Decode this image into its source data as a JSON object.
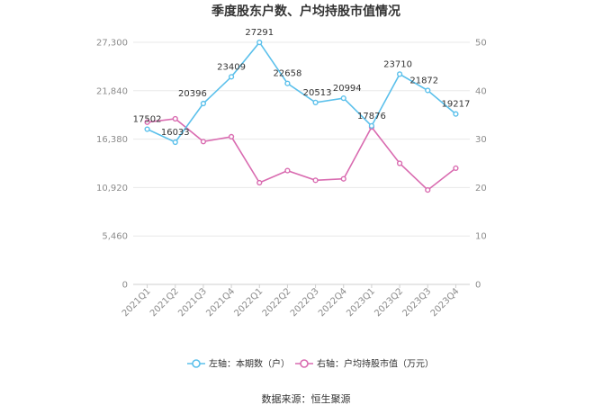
{
  "chart_data": {
    "type": "line",
    "title": "季度股东户数、户均持股市值情况",
    "categories": [
      "2021Q1",
      "2021Q2",
      "2021Q3",
      "2021Q4",
      "2022Q1",
      "2022Q2",
      "2022Q3",
      "2022Q4",
      "2023Q1",
      "2023Q2",
      "2023Q3",
      "2023Q4"
    ],
    "left_axis": {
      "min": 0,
      "max": 27300,
      "ticks": [
        0,
        5460,
        10920,
        16380,
        21840,
        27300
      ],
      "tick_labels": [
        "0",
        "5,460",
        "10,920",
        "16,380",
        "21,840",
        "27,300"
      ]
    },
    "right_axis": {
      "min": 0,
      "max": 50,
      "ticks": [
        0,
        10,
        20,
        30,
        40,
        50
      ],
      "tick_labels": [
        "0",
        "10",
        "20",
        "30",
        "40",
        "50"
      ]
    },
    "series": [
      {
        "name": "左轴：本期数（户）",
        "axis": "left",
        "color": "#5bc0eb",
        "values": [
          17502,
          16033,
          20396,
          23409,
          27291,
          22658,
          20513,
          20994,
          17876,
          23710,
          21872,
          19217
        ],
        "labels": [
          "17502",
          "16033",
          "20396",
          "23409",
          "27291",
          "22658",
          "20513",
          "20994",
          "17876",
          "23710",
          "21872",
          "19217"
        ]
      },
      {
        "name": "右轴：户均持股市值（万元）",
        "axis": "right",
        "color": "#d96bb0",
        "values": [
          33.5,
          34.2,
          29.5,
          30.5,
          21.0,
          23.5,
          21.5,
          21.8,
          32.5,
          25.0,
          19.5,
          24.0
        ]
      }
    ],
    "grid": true,
    "legend_position": "bottom"
  },
  "source": "数据来源：恒生聚源"
}
